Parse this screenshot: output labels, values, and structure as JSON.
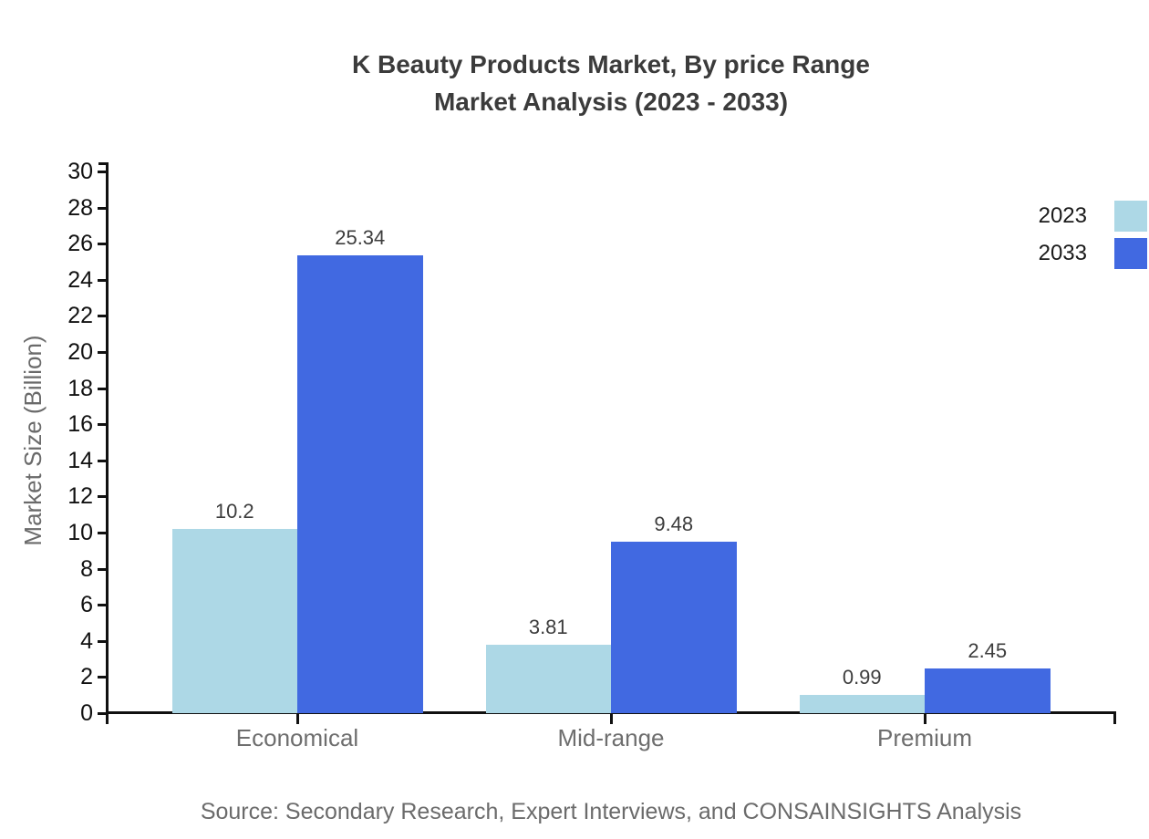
{
  "title": {
    "line1": "K Beauty Products Market, By price Range",
    "line2": "Market Analysis (2023 - 2033)"
  },
  "legend": [
    {
      "label": "2023",
      "color": "#ADD8E6"
    },
    {
      "label": "2033",
      "color": "#4169E1"
    }
  ],
  "y_axis": {
    "label": "Market Size (Billion)",
    "ticks": [
      0,
      2,
      4,
      6,
      8,
      10,
      12,
      14,
      16,
      18,
      20,
      22,
      24,
      26,
      28,
      30
    ]
  },
  "source": "Source: Secondary Research, Expert Interviews, and CONSAINSIGHTS Analysis",
  "chart_data": {
    "type": "bar",
    "title": "K Beauty Products Market, By price Range Market Analysis (2023 - 2033)",
    "categories": [
      "Economical",
      "Mid-range",
      "Premium"
    ],
    "series": [
      {
        "name": "2023",
        "color": "#ADD8E6",
        "values": [
          10.2,
          3.81,
          0.99
        ]
      },
      {
        "name": "2033",
        "color": "#4169E1",
        "values": [
          25.34,
          9.48,
          2.45
        ]
      }
    ],
    "value_labels": [
      [
        "10.2",
        "3.81",
        "0.99"
      ],
      [
        "25.34",
        "9.48",
        "2.45"
      ]
    ],
    "xlabel": "",
    "ylabel": "Market Size (Billion)",
    "ylim": [
      0,
      30
    ],
    "ytick_step": 2,
    "grid": false,
    "legend_position": "top-right",
    "axis_color": "#111111"
  }
}
